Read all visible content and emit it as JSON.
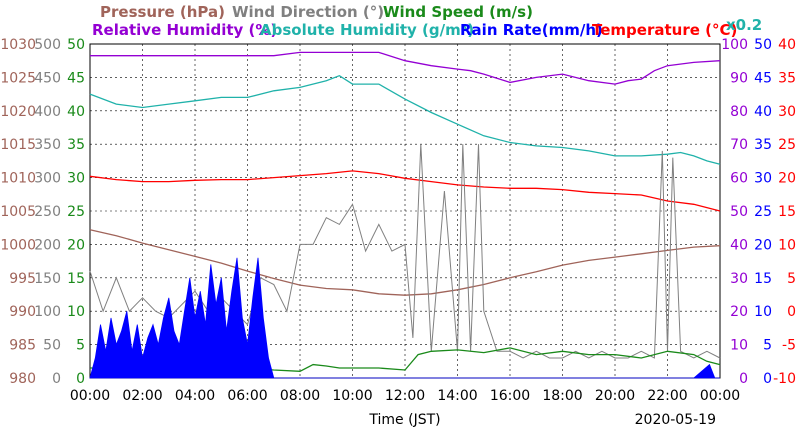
{
  "chart_data": {
    "type": "line",
    "header": {
      "row1": [
        {
          "text": "Pressure (hPa)",
          "color": "#a0645a"
        },
        {
          "text": "Wind Direction (°)",
          "color": "#808080"
        },
        {
          "text": "Wind Speed (m/s)",
          "color": "#1a8a1a"
        }
      ],
      "row2": [
        {
          "text": "Relative Humidity (%)",
          "color": "#9400d3"
        },
        {
          "text": "Absolute Humidity (g/m³)",
          "color": "#20b2aa"
        },
        {
          "text": "Rain Rate(mm/h)",
          "color": "#0000ff"
        },
        {
          "text": "Temperature (°C)",
          "color": "#ff0000"
        }
      ],
      "multiplier": {
        "text": "x0.2",
        "color": "#20b2aa"
      }
    },
    "xlabel": "Time (JST)",
    "date": "2020-05-19",
    "x_ticks": [
      "00:00",
      "02:00",
      "04:00",
      "06:00",
      "08:00",
      "10:00",
      "12:00",
      "14:00",
      "16:00",
      "18:00",
      "20:00",
      "22:00",
      "00:00"
    ],
    "xlim_hours": [
      0,
      24
    ],
    "axes": {
      "pressure": {
        "ticks": [
          "980",
          "985",
          "990",
          "995",
          "1000",
          "1005",
          "1010",
          "1015",
          "1020",
          "1025",
          "1030"
        ],
        "range": [
          980,
          1030
        ],
        "color": "#a0645a"
      },
      "wind_direction": {
        "ticks": [
          "0",
          "50",
          "100",
          "150",
          "200",
          "250",
          "300",
          "350",
          "400",
          "450",
          "500"
        ],
        "range": [
          0,
          500
        ],
        "color": "#808080"
      },
      "wind_speed": {
        "ticks": [
          "0",
          "5",
          "10",
          "15",
          "20",
          "25",
          "30",
          "35",
          "40",
          "45",
          "50"
        ],
        "range": [
          0,
          50
        ],
        "color": "#1a8a1a"
      },
      "relative_humidity": {
        "ticks": [
          "0",
          "10",
          "20",
          "30",
          "40",
          "50",
          "60",
          "70",
          "80",
          "90",
          "100"
        ],
        "range": [
          0,
          100
        ],
        "color": "#9400d3"
      },
      "rain_rate": {
        "ticks": [
          "0",
          "5",
          "10",
          "15",
          "20",
          "25",
          "30",
          "35",
          "40",
          "45",
          "50"
        ],
        "range": [
          0,
          50
        ],
        "color": "#0000ff"
      },
      "temperature": {
        "ticks": [
          "-10",
          "-5",
          "0",
          "5",
          "10",
          "15",
          "20",
          "25",
          "30",
          "35",
          "40"
        ],
        "range": [
          -10,
          40
        ],
        "color": "#ff0000"
      }
    },
    "grid": true,
    "series": [
      {
        "name": "Relative Humidity (%)",
        "key": "rh",
        "color": "#9400d3",
        "x": [
          0,
          1,
          2,
          3,
          4,
          5,
          6,
          7,
          8,
          9,
          10,
          11,
          12,
          13,
          14,
          14.5,
          15,
          16,
          17,
          18,
          19,
          20,
          20.5,
          21,
          21.5,
          22,
          23,
          24
        ],
        "y": [
          96.5,
          96.5,
          96.5,
          96.5,
          96.5,
          96.5,
          96.5,
          96.5,
          97.5,
          97.5,
          97.5,
          97.5,
          95,
          93.5,
          92.5,
          92,
          91,
          88.5,
          90,
          91,
          89,
          88,
          89,
          89.5,
          92,
          93.5,
          94.5,
          95
        ]
      },
      {
        "name": "Absolute Humidity (g/m³)",
        "key": "ah",
        "color": "#20b2aa",
        "scale": 0.2,
        "x": [
          0,
          1,
          2,
          3,
          4,
          5,
          6,
          7,
          8,
          9,
          9.5,
          10,
          11,
          12,
          13,
          14,
          15,
          16,
          17,
          18,
          19,
          20,
          21,
          22,
          22.5,
          23,
          23.5,
          24
        ],
        "y": [
          17,
          16.4,
          16.2,
          16.4,
          16.6,
          16.8,
          16.8,
          17.2,
          17.4,
          17.8,
          18.1,
          17.6,
          17.6,
          16.7,
          15.9,
          15.2,
          14.5,
          14.1,
          13.9,
          13.8,
          13.6,
          13.3,
          13.3,
          13.4,
          13.5,
          13.3,
          13.0,
          12.8
        ]
      },
      {
        "name": "Temperature (°C)",
        "key": "temp",
        "color": "#ff0000",
        "x": [
          0,
          1,
          2,
          3,
          4,
          5,
          6,
          7,
          8,
          9,
          10,
          11,
          12,
          13,
          14,
          15,
          16,
          17,
          18,
          19,
          20,
          21,
          22,
          23,
          24
        ],
        "y": [
          20.2,
          19.7,
          19.4,
          19.4,
          19.6,
          19.7,
          19.7,
          20.0,
          20.3,
          20.6,
          21.0,
          20.6,
          19.9,
          19.4,
          18.9,
          18.6,
          18.4,
          18.4,
          18.2,
          17.8,
          17.6,
          17.4,
          16.5,
          16.0,
          15.0
        ]
      },
      {
        "name": "Pressure (hPa)",
        "key": "pres",
        "color": "#a0645a",
        "x": [
          0,
          1,
          2,
          3,
          4,
          5,
          6,
          7,
          8,
          9,
          10,
          11,
          12,
          13,
          14,
          15,
          16,
          17,
          18,
          19,
          20,
          21,
          22,
          23,
          24
        ],
        "y": [
          1002.2,
          1001.3,
          1000.2,
          999.2,
          998.2,
          997.2,
          996.0,
          994.9,
          993.9,
          993.4,
          993.2,
          992.6,
          992.4,
          992.6,
          993.2,
          994.0,
          995.0,
          995.9,
          996.9,
          997.6,
          998.1,
          998.6,
          999.1,
          999.6,
          999.8
        ]
      },
      {
        "name": "Wind Direction (°)",
        "key": "wdir",
        "color": "#808080",
        "x": [
          0,
          0.5,
          1,
          1.5,
          2,
          2.5,
          3,
          3.5,
          4,
          4.5,
          5,
          5.5,
          6,
          6.5,
          7,
          7.5,
          8,
          8.5,
          9,
          9.5,
          10,
          10.5,
          11,
          11.5,
          12,
          12.3,
          12.6,
          13,
          13.5,
          14,
          14.2,
          14.5,
          14.8,
          15,
          15.5,
          16,
          16.5,
          17,
          17.5,
          18,
          18.5,
          19,
          19.5,
          20,
          20.5,
          21,
          21.5,
          21.8,
          22,
          22.2,
          22.5,
          23,
          23.5,
          24
        ],
        "y": [
          160,
          100,
          150,
          100,
          120,
          100,
          90,
          110,
          130,
          100,
          120,
          100,
          80,
          150,
          140,
          100,
          200,
          200,
          240,
          230,
          260,
          190,
          230,
          190,
          200,
          60,
          350,
          40,
          280,
          40,
          350,
          40,
          350,
          100,
          40,
          40,
          30,
          40,
          30,
          30,
          40,
          30,
          40,
          30,
          30,
          40,
          30,
          340,
          40,
          330,
          40,
          30,
          40,
          30
        ]
      },
      {
        "name": "Wind Speed (m/s)",
        "key": "wspd",
        "color": "#1a8a1a",
        "x": [
          0,
          1,
          2,
          3,
          4,
          5,
          6,
          7,
          8,
          8.5,
          9,
          9.5,
          10,
          11,
          12,
          12.5,
          13,
          14,
          15,
          16,
          17,
          18,
          19,
          20,
          21,
          22,
          23,
          23.5,
          24
        ],
        "y": [
          1.5,
          1.5,
          1.2,
          1.4,
          1.5,
          1.8,
          1.5,
          1.2,
          1.0,
          2.0,
          1.8,
          1.5,
          1.5,
          1.5,
          1.2,
          3.5,
          4.0,
          4.2,
          3.8,
          4.5,
          3.5,
          4.0,
          3.5,
          3.5,
          3.0,
          4.0,
          3.5,
          2.5,
          2.0
        ]
      },
      {
        "name": "Rain Rate(mm/h)",
        "key": "rain",
        "color": "#0000ff",
        "x": [
          0,
          0.2,
          0.4,
          0.6,
          0.8,
          1.0,
          1.2,
          1.4,
          1.6,
          1.8,
          2.0,
          2.2,
          2.4,
          2.6,
          2.8,
          3.0,
          3.2,
          3.4,
          3.6,
          3.8,
          4.0,
          4.2,
          4.4,
          4.6,
          4.8,
          5.0,
          5.2,
          5.4,
          5.6,
          5.8,
          6.0,
          6.2,
          6.4,
          6.6,
          6.8,
          7.0,
          7.2,
          7.4,
          8.0,
          9.0,
          10.0,
          11.0,
          12.0,
          13.0,
          14.0,
          15.0,
          16.0,
          17.0,
          18.0,
          19.0,
          20.0,
          21.0,
          22.0,
          23.0,
          23.6,
          23.8,
          24.0
        ],
        "y": [
          0,
          3,
          8,
          4,
          9,
          5,
          7,
          10,
          4,
          8,
          3,
          6,
          8,
          5,
          9,
          12,
          7,
          5,
          10,
          15,
          9,
          13,
          8,
          17,
          11,
          15,
          7,
          13,
          18,
          9,
          5,
          12,
          18,
          9,
          3,
          0,
          0,
          0,
          0,
          0,
          0,
          0,
          0,
          0,
          0,
          0,
          0,
          0,
          0,
          0,
          0,
          0,
          0,
          0,
          2,
          0,
          0
        ]
      }
    ]
  }
}
